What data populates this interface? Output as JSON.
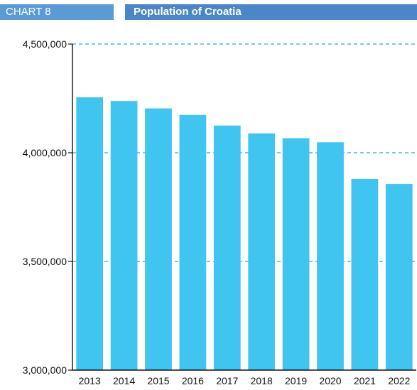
{
  "header": {
    "chart_number": "CHART 8",
    "title": "Population of Croatia"
  },
  "colors": {
    "bar": "#3fc5f0",
    "grid": "#29a8e0",
    "badge_number": "#5b9bd5",
    "badge_title": "#4a86c8"
  },
  "chart_data": {
    "type": "bar",
    "title": "Population of Croatia",
    "xlabel": "",
    "ylabel": "",
    "categories": [
      "2013",
      "2014",
      "2015",
      "2016",
      "2017",
      "2018",
      "2019",
      "2020",
      "2021",
      "2022"
    ],
    "values": [
      4255000,
      4238000,
      4204000,
      4174000,
      4125000,
      4089000,
      4067000,
      4048000,
      3879000,
      3856000
    ],
    "ylim": [
      3000000,
      4500000
    ],
    "yticks": [
      3000000,
      3500000,
      4000000,
      4500000
    ],
    "ytick_labels": [
      "3,000,000",
      "3,500,000",
      "4,000,000",
      "4,500,000"
    ],
    "grid": "dashed horizontal",
    "legend": "none"
  }
}
